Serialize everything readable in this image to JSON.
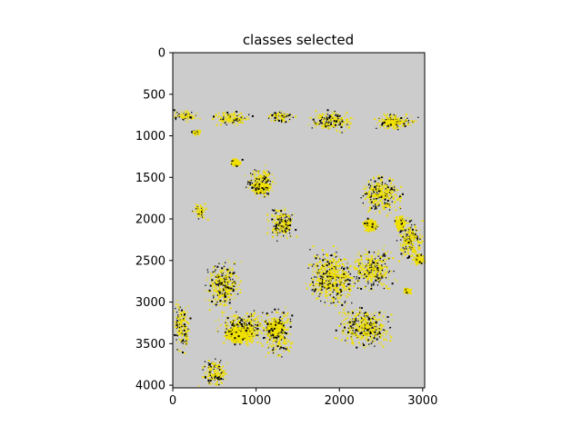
{
  "chart_data": {
    "type": "heatmap",
    "title": "classes selected",
    "xlabel": "",
    "ylabel": "",
    "xlim": [
      0,
      3024
    ],
    "ylim": [
      4032,
      0
    ],
    "xticks": [
      0,
      1000,
      2000,
      3000
    ],
    "yticks": [
      0,
      500,
      1000,
      1500,
      2000,
      2500,
      3000,
      3500,
      4000
    ],
    "grid": false,
    "legend": "none",
    "colors": {
      "background_class": "#cccccc",
      "selected_class": "#f0e000",
      "edge_class": "#000000",
      "figure": "#ffffff"
    },
    "selected_regions": [
      {
        "x": 150,
        "y": 750,
        "rx": 220,
        "ry": 90
      },
      {
        "x": 700,
        "y": 780,
        "rx": 320,
        "ry": 110
      },
      {
        "x": 1300,
        "y": 760,
        "rx": 220,
        "ry": 90
      },
      {
        "x": 1900,
        "y": 820,
        "rx": 320,
        "ry": 160
      },
      {
        "x": 2650,
        "y": 820,
        "rx": 330,
        "ry": 120
      },
      {
        "x": 1050,
        "y": 1550,
        "rx": 230,
        "ry": 220
      },
      {
        "x": 1300,
        "y": 2050,
        "rx": 200,
        "ry": 260
      },
      {
        "x": 2500,
        "y": 1700,
        "rx": 300,
        "ry": 280
      },
      {
        "x": 2850,
        "y": 2250,
        "rx": 180,
        "ry": 320
      },
      {
        "x": 320,
        "y": 1900,
        "rx": 110,
        "ry": 140
      },
      {
        "x": 600,
        "y": 2800,
        "rx": 250,
        "ry": 350
      },
      {
        "x": 850,
        "y": 3300,
        "rx": 380,
        "ry": 250
      },
      {
        "x": 1250,
        "y": 3350,
        "rx": 220,
        "ry": 350
      },
      {
        "x": 1900,
        "y": 2700,
        "rx": 340,
        "ry": 400
      },
      {
        "x": 2400,
        "y": 2600,
        "rx": 300,
        "ry": 300
      },
      {
        "x": 2300,
        "y": 3300,
        "rx": 380,
        "ry": 300
      },
      {
        "x": 500,
        "y": 3850,
        "rx": 200,
        "ry": 200
      },
      {
        "x": 100,
        "y": 3300,
        "rx": 120,
        "ry": 400
      }
    ],
    "dense_blobs": [
      {
        "x": 750,
        "y": 1310,
        "rx": 90,
        "ry": 60
      },
      {
        "x": 2360,
        "y": 2070,
        "rx": 100,
        "ry": 90
      },
      {
        "x": 2950,
        "y": 2480,
        "rx": 70,
        "ry": 80
      },
      {
        "x": 2810,
        "y": 2860,
        "rx": 60,
        "ry": 50
      },
      {
        "x": 780,
        "y": 3380,
        "rx": 200,
        "ry": 120
      },
      {
        "x": 1220,
        "y": 3300,
        "rx": 120,
        "ry": 100
      },
      {
        "x": 1050,
        "y": 1620,
        "rx": 130,
        "ry": 80
      },
      {
        "x": 2720,
        "y": 2050,
        "rx": 70,
        "ry": 120
      },
      {
        "x": 270,
        "y": 950,
        "rx": 60,
        "ry": 40
      },
      {
        "x": 2620,
        "y": 830,
        "rx": 140,
        "ry": 40
      }
    ]
  }
}
